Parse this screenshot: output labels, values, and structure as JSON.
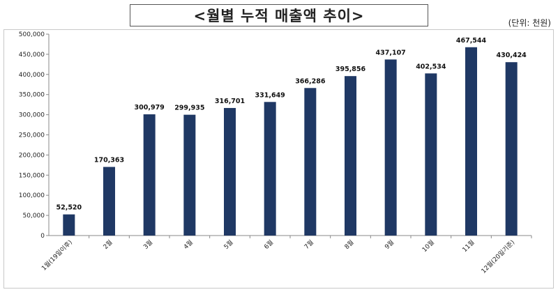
{
  "header": {
    "title": "<월별 누적 매출액 추이>",
    "unit": "(단위: 천원)"
  },
  "chart_data": {
    "type": "bar",
    "title": "<월별 누적 매출액 추이>",
    "unit_note": "(단위: 천원)",
    "categories": [
      "1월(19일이후)",
      "2월",
      "3월",
      "4월",
      "5월",
      "6월",
      "7월",
      "8월",
      "9월",
      "10월",
      "11월",
      "12월(20일기준)"
    ],
    "values": [
      52520,
      170363,
      300979,
      299935,
      316701,
      331649,
      366286,
      395856,
      437107,
      402534,
      467544,
      430424
    ],
    "value_labels": [
      "52,520",
      "170,363",
      "300,979",
      "299,935",
      "316,701",
      "331,649",
      "366,286",
      "395,856",
      "437,107",
      "402,534",
      "467,544",
      "430,424"
    ],
    "ylim": [
      0,
      500000
    ],
    "yticks": [
      0,
      50000,
      100000,
      150000,
      200000,
      250000,
      300000,
      350000,
      400000,
      450000,
      500000
    ],
    "ytick_labels": [
      "0",
      "50,000",
      "100,000",
      "150,000",
      "200,000",
      "250,000",
      "300,000",
      "350,000",
      "400,000",
      "450,000",
      "500,000"
    ],
    "grid": false,
    "legend": "none",
    "bar_color": "#1f3864"
  }
}
